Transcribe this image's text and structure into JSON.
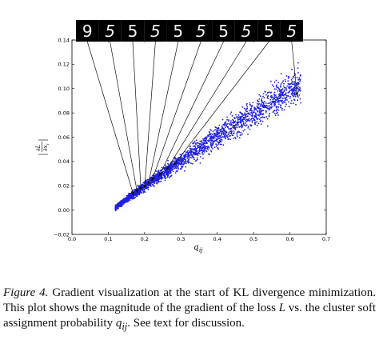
{
  "chart_data": {
    "type": "scatter",
    "title": "",
    "xlabel": "q_ij",
    "ylabel": "|∂L/∂x_i|",
    "xlim": [
      0.0,
      0.7
    ],
    "ylim": [
      -0.02,
      0.14
    ],
    "xticks": [
      "0.0",
      "0.1",
      "0.2",
      "0.3",
      "0.4",
      "0.5",
      "0.6",
      "0.7"
    ],
    "yticks": [
      "−0.02",
      "0.00",
      "0.02",
      "0.04",
      "0.06",
      "0.08",
      "0.10",
      "0.12",
      "0.14"
    ],
    "marker_color": "#1f1fe0",
    "grid": false,
    "series": [
      {
        "points_summary": "dense band of points rising from (0.12, 0.002) to about (0.62, 0.105)",
        "x_start": 0.12,
        "x_end": 0.63,
        "y_start": 0.002,
        "y_end": 0.105
      }
    ],
    "annotations": [
      {
        "digit": "9",
        "points_to": [
          0.17,
          0.012
        ]
      },
      {
        "digit": "5",
        "points_to": [
          0.18,
          0.014
        ]
      },
      {
        "digit": "5",
        "points_to": [
          0.19,
          0.016
        ]
      },
      {
        "digit": "5",
        "points_to": [
          0.2,
          0.018
        ]
      },
      {
        "digit": "5",
        "points_to": [
          0.21,
          0.021
        ]
      },
      {
        "digit": "5",
        "points_to": [
          0.22,
          0.024
        ]
      },
      {
        "digit": "5",
        "points_to": [
          0.24,
          0.028
        ]
      },
      {
        "digit": "5",
        "points_to": [
          0.26,
          0.033
        ]
      },
      {
        "digit": "5",
        "points_to": [
          0.28,
          0.037
        ]
      },
      {
        "digit": "5",
        "points_to": [
          0.62,
          0.094
        ]
      }
    ]
  },
  "caption": {
    "label": "Figure 4.",
    "text_1": " Gradient visualization at the start of KL divergence minimization. This plot shows the magnitude of the gradient of the loss ",
    "var_L": "L",
    "text_2": " vs. the cluster soft assignment probability ",
    "var_q": "q",
    "var_q_sub": "ij",
    "text_3": ". See text for discussion."
  }
}
